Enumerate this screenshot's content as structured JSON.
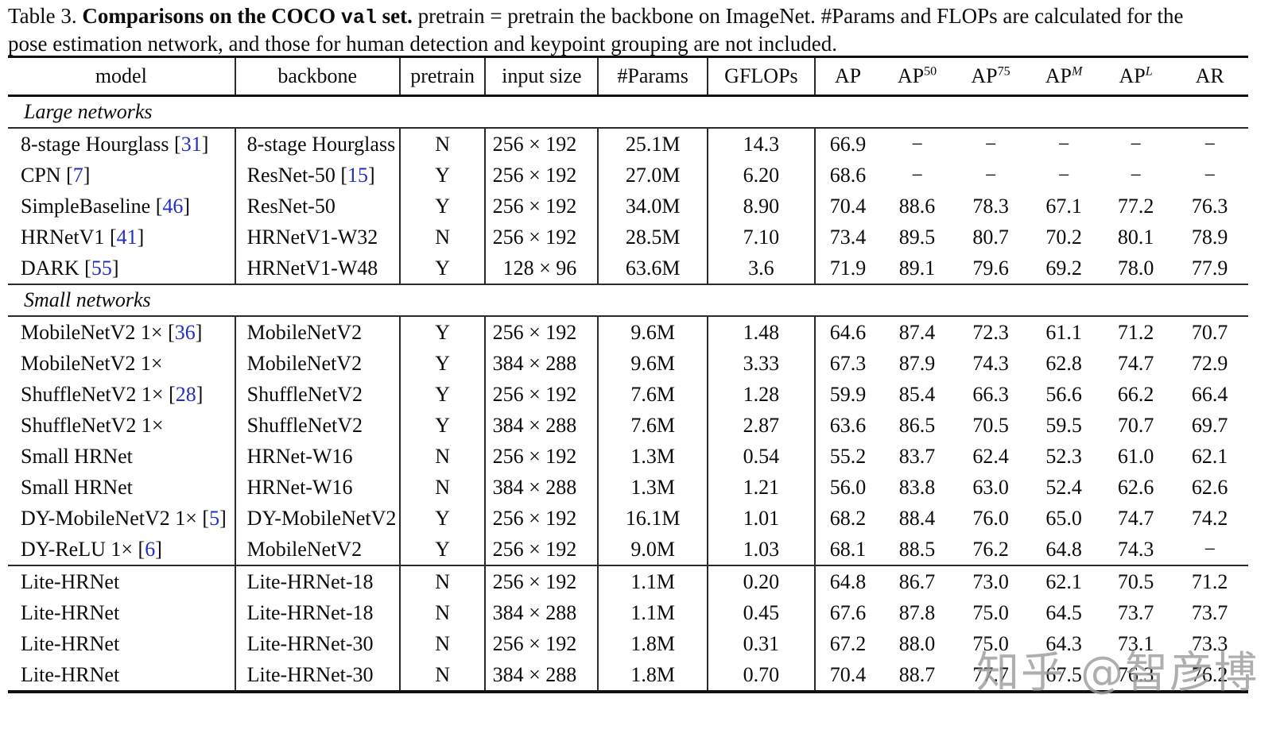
{
  "caption": {
    "label": "Table 3. ",
    "bold1": "Comparisons on the COCO ",
    "code": "val",
    "bold2": " set.",
    "rest": " pretrain = pretrain the backbone on ImageNet. #Params and FLOPs are calculated for the pose estimation network, and those for human detection and keypoint grouping are not included."
  },
  "watermark": {
    "text": "知乎 @智彦博",
    "color": "#9d9d9d"
  },
  "colors": {
    "citation_link": "#2230c2",
    "rule": "#111111"
  },
  "table": {
    "columns": [
      {
        "label": "model"
      },
      {
        "label": "backbone"
      },
      {
        "label": "pretrain"
      },
      {
        "label": "input size"
      },
      {
        "label": "#Params"
      },
      {
        "label": "GFLOPs"
      },
      {
        "label": "AP"
      },
      {
        "label": "AP",
        "sup": "50",
        "sup_italic": false
      },
      {
        "label": "AP",
        "sup": "75",
        "sup_italic": false
      },
      {
        "label": "AP",
        "sup": "M",
        "sup_italic": true
      },
      {
        "label": "AP",
        "sup": "L",
        "sup_italic": true
      },
      {
        "label": "AR"
      }
    ],
    "sections": [
      {
        "label": "Large networks",
        "groups": [
          [
            {
              "model": "8-stage Hourglass",
              "model_cite": "31",
              "backbone": "8-stage Hourglass",
              "backbone_cite": null,
              "pretrain": "N",
              "input_size": "256 × 192",
              "params": "25.1M",
              "gflops": "14.3",
              "ap": "66.9",
              "ap50": "−",
              "ap75": "−",
              "apm": "−",
              "apl": "−",
              "ar": "−"
            },
            {
              "model": "CPN",
              "model_cite": "7",
              "backbone": "ResNet-50",
              "backbone_cite": "15",
              "pretrain": "Y",
              "input_size": "256 × 192",
              "params": "27.0M",
              "gflops": "6.20",
              "ap": "68.6",
              "ap50": "−",
              "ap75": "−",
              "apm": "−",
              "apl": "−",
              "ar": "−"
            },
            {
              "model": "SimpleBaseline",
              "model_cite": "46",
              "backbone": "ResNet-50",
              "backbone_cite": null,
              "pretrain": "Y",
              "input_size": "256 × 192",
              "params": "34.0M",
              "gflops": "8.90",
              "ap": "70.4",
              "ap50": "88.6",
              "ap75": "78.3",
              "apm": "67.1",
              "apl": "77.2",
              "ar": "76.3"
            },
            {
              "model": "HRNetV1",
              "model_cite": "41",
              "backbone": "HRNetV1-W32",
              "backbone_cite": null,
              "pretrain": "N",
              "input_size": "256 × 192",
              "params": "28.5M",
              "gflops": "7.10",
              "ap": "73.4",
              "ap50": "89.5",
              "ap75": "80.7",
              "apm": "70.2",
              "apl": "80.1",
              "ar": "78.9"
            },
            {
              "model": "DARK",
              "model_cite": "55",
              "backbone": "HRNetV1-W48",
              "backbone_cite": null,
              "pretrain": "Y",
              "input_size": "128 × 96",
              "params": "63.6M",
              "gflops": "3.6",
              "ap": "71.9",
              "ap50": "89.1",
              "ap75": "79.6",
              "apm": "69.2",
              "apl": "78.0",
              "ar": "77.9"
            }
          ]
        ]
      },
      {
        "label": "Small networks",
        "groups": [
          [
            {
              "model": "MobileNetV2 1×",
              "model_cite": "36",
              "backbone": "MobileNetV2",
              "backbone_cite": null,
              "pretrain": "Y",
              "input_size": "256 × 192",
              "params": "9.6M",
              "gflops": "1.48",
              "ap": "64.6",
              "ap50": "87.4",
              "ap75": "72.3",
              "apm": "61.1",
              "apl": "71.2",
              "ar": "70.7"
            },
            {
              "model": "MobileNetV2 1×",
              "model_cite": null,
              "backbone": "MobileNetV2",
              "backbone_cite": null,
              "pretrain": "Y",
              "input_size": "384 × 288",
              "params": "9.6M",
              "gflops": "3.33",
              "ap": "67.3",
              "ap50": "87.9",
              "ap75": "74.3",
              "apm": "62.8",
              "apl": "74.7",
              "ar": "72.9"
            },
            {
              "model": "ShuffleNetV2 1×",
              "model_cite": "28",
              "backbone": "ShuffleNetV2",
              "backbone_cite": null,
              "pretrain": "Y",
              "input_size": "256 × 192",
              "params": "7.6M",
              "gflops": "1.28",
              "ap": "59.9",
              "ap50": "85.4",
              "ap75": "66.3",
              "apm": "56.6",
              "apl": "66.2",
              "ar": "66.4"
            },
            {
              "model": "ShuffleNetV2 1×",
              "model_cite": null,
              "backbone": "ShuffleNetV2",
              "backbone_cite": null,
              "pretrain": "Y",
              "input_size": "384 × 288",
              "params": "7.6M",
              "gflops": "2.87",
              "ap": "63.6",
              "ap50": "86.5",
              "ap75": "70.5",
              "apm": "59.5",
              "apl": "70.7",
              "ar": "69.7"
            },
            {
              "model": "Small HRNet",
              "model_cite": null,
              "backbone": "HRNet-W16",
              "backbone_cite": null,
              "pretrain": "N",
              "input_size": "256 × 192",
              "params": "1.3M",
              "gflops": "0.54",
              "ap": "55.2",
              "ap50": "83.7",
              "ap75": "62.4",
              "apm": "52.3",
              "apl": "61.0",
              "ar": "62.1"
            },
            {
              "model": "Small HRNet",
              "model_cite": null,
              "backbone": "HRNet-W16",
              "backbone_cite": null,
              "pretrain": "N",
              "input_size": "384 × 288",
              "params": "1.3M",
              "gflops": "1.21",
              "ap": "56.0",
              "ap50": "83.8",
              "ap75": "63.0",
              "apm": "52.4",
              "apl": "62.6",
              "ar": "62.6"
            },
            {
              "model": "DY-MobileNetV2 1×",
              "model_cite": "5",
              "backbone": "DY-MobileNetV2",
              "backbone_cite": null,
              "pretrain": "Y",
              "input_size": "256 × 192",
              "params": "16.1M",
              "gflops": "1.01",
              "ap": "68.2",
              "ap50": "88.4",
              "ap75": "76.0",
              "apm": "65.0",
              "apl": "74.7",
              "ar": "74.2"
            },
            {
              "model": "DY-ReLU 1×",
              "model_cite": "6",
              "backbone": "MobileNetV2",
              "backbone_cite": null,
              "pretrain": "Y",
              "input_size": "256 × 192",
              "params": "9.0M",
              "gflops": "1.03",
              "ap": "68.1",
              "ap50": "88.5",
              "ap75": "76.2",
              "apm": "64.8",
              "apl": "74.3",
              "ar": "−"
            }
          ],
          [
            {
              "model": "Lite-HRNet",
              "model_cite": null,
              "backbone": "Lite-HRNet-18",
              "backbone_cite": null,
              "pretrain": "N",
              "input_size": "256 × 192",
              "params": "1.1M",
              "gflops": "0.20",
              "ap": "64.8",
              "ap50": "86.7",
              "ap75": "73.0",
              "apm": "62.1",
              "apl": "70.5",
              "ar": "71.2"
            },
            {
              "model": "Lite-HRNet",
              "model_cite": null,
              "backbone": "Lite-HRNet-18",
              "backbone_cite": null,
              "pretrain": "N",
              "input_size": "384 × 288",
              "params": "1.1M",
              "gflops": "0.45",
              "ap": "67.6",
              "ap50": "87.8",
              "ap75": "75.0",
              "apm": "64.5",
              "apl": "73.7",
              "ar": "73.7"
            },
            {
              "model": "Lite-HRNet",
              "model_cite": null,
              "backbone": "Lite-HRNet-30",
              "backbone_cite": null,
              "pretrain": "N",
              "input_size": "256 × 192",
              "params": "1.8M",
              "gflops": "0.31",
              "ap": "67.2",
              "ap50": "88.0",
              "ap75": "75.0",
              "apm": "64.3",
              "apl": "73.1",
              "ar": "73.3"
            },
            {
              "model": "Lite-HRNet",
              "model_cite": null,
              "backbone": "Lite-HRNet-30",
              "backbone_cite": null,
              "pretrain": "N",
              "input_size": "384 × 288",
              "params": "1.8M",
              "gflops": "0.70",
              "ap": "70.4",
              "ap50": "88.7",
              "ap75": "77.7",
              "apm": "67.5",
              "apl": "76.3",
              "ar": "76.2"
            }
          ]
        ]
      }
    ]
  }
}
